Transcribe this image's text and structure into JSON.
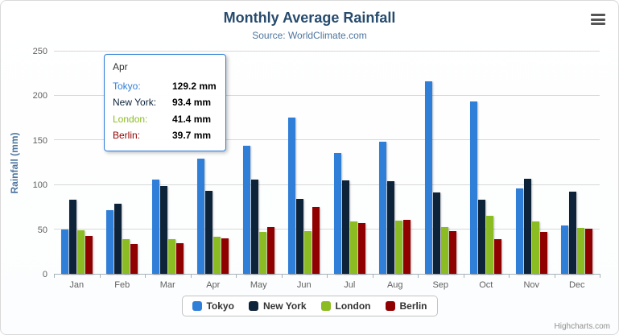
{
  "chart_data": {
    "type": "bar",
    "title": "Monthly Average Rainfall",
    "subtitle": "Source: WorldClimate.com",
    "xlabel": "",
    "ylabel": "Rainfall (mm)",
    "ylim": [
      0,
      250
    ],
    "yticks": [
      0,
      50,
      100,
      150,
      200,
      250
    ],
    "grid": true,
    "legend_position": "bottom",
    "categories": [
      "Jan",
      "Feb",
      "Mar",
      "Apr",
      "May",
      "Jun",
      "Jul",
      "Aug",
      "Sep",
      "Oct",
      "Nov",
      "Dec"
    ],
    "series": [
      {
        "name": "Tokyo",
        "color": "#2f7ed8",
        "values": [
          49.9,
          71.5,
          106.4,
          129.2,
          144.0,
          176.0,
          135.6,
          148.5,
          216.4,
          194.1,
          95.6,
          54.4
        ]
      },
      {
        "name": "New York",
        "color": "#0d233a",
        "values": [
          83.6,
          78.8,
          98.5,
          93.4,
          106.0,
          84.5,
          105.0,
          104.3,
          91.2,
          83.5,
          106.6,
          92.3
        ]
      },
      {
        "name": "London",
        "color": "#8bbc21",
        "values": [
          48.9,
          38.8,
          39.3,
          41.4,
          47.0,
          48.3,
          59.0,
          59.6,
          52.4,
          65.2,
          59.3,
          51.2
        ]
      },
      {
        "name": "Berlin",
        "color": "#910000",
        "values": [
          42.4,
          33.2,
          34.5,
          39.7,
          52.6,
          75.5,
          57.4,
          60.4,
          47.6,
          39.1,
          46.8,
          51.1
        ]
      }
    ]
  },
  "tooltip": {
    "category": "Apr",
    "rows": [
      {
        "name": "Tokyo",
        "value": "129.2 mm"
      },
      {
        "name": "New York",
        "value": "93.4 mm"
      },
      {
        "name": "London",
        "value": "41.4 mm"
      },
      {
        "name": "Berlin",
        "value": "39.7 mm"
      }
    ]
  },
  "credits": {
    "label": "Highcharts.com"
  }
}
